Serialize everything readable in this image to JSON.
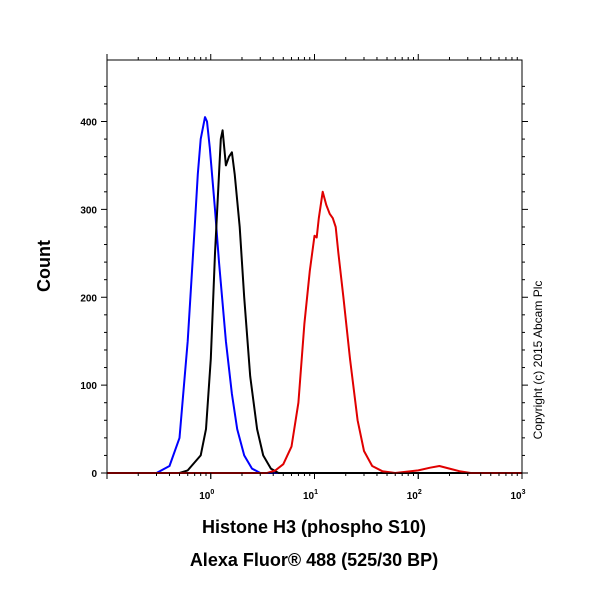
{
  "chart_data": {
    "type": "line",
    "ylabel": "Count",
    "xlabel_line1": "Histone H3 (phospho S10)",
    "xlabel_line2": "Alexa Fluor® 488 (525/30 BP)",
    "copyright": "Copyright (c) 2015 Abcam Plc",
    "x_scale": "log",
    "xlim": [
      0.1,
      1000
    ],
    "ylim": [
      0,
      470
    ],
    "y_ticks": [
      0,
      100,
      200,
      300,
      400
    ],
    "x_ticks": [
      {
        "value": 1,
        "base": "10",
        "exp": "0"
      },
      {
        "value": 10,
        "base": "10",
        "exp": "1"
      },
      {
        "value": 100,
        "base": "10",
        "exp": "2"
      },
      {
        "value": 1000,
        "base": "10",
        "exp": "3"
      }
    ],
    "series": [
      {
        "color": "#0000ff",
        "points": [
          [
            0.1,
            0
          ],
          [
            0.3,
            0
          ],
          [
            0.4,
            8
          ],
          [
            0.5,
            40
          ],
          [
            0.6,
            150
          ],
          [
            0.7,
            280
          ],
          [
            0.75,
            340
          ],
          [
            0.8,
            380
          ],
          [
            0.88,
            405
          ],
          [
            0.92,
            400
          ],
          [
            0.98,
            370
          ],
          [
            1.1,
            300
          ],
          [
            1.2,
            240
          ],
          [
            1.4,
            150
          ],
          [
            1.6,
            90
          ],
          [
            1.8,
            50
          ],
          [
            2.1,
            20
          ],
          [
            2.5,
            5
          ],
          [
            3,
            0
          ],
          [
            1000,
            0
          ]
        ]
      },
      {
        "color": "#000000",
        "points": [
          [
            0.1,
            0
          ],
          [
            0.5,
            0
          ],
          [
            0.6,
            3
          ],
          [
            0.8,
            20
          ],
          [
            0.9,
            50
          ],
          [
            1.0,
            130
          ],
          [
            1.1,
            250
          ],
          [
            1.2,
            340
          ],
          [
            1.25,
            380
          ],
          [
            1.3,
            390
          ],
          [
            1.4,
            350
          ],
          [
            1.5,
            360
          ],
          [
            1.6,
            365
          ],
          [
            1.7,
            340
          ],
          [
            1.9,
            280
          ],
          [
            2.1,
            200
          ],
          [
            2.4,
            110
          ],
          [
            2.8,
            50
          ],
          [
            3.2,
            20
          ],
          [
            3.8,
            5
          ],
          [
            4.5,
            0
          ],
          [
            1000,
            0
          ]
        ]
      },
      {
        "color": "#e00000",
        "points": [
          [
            0.1,
            0
          ],
          [
            3.5,
            0
          ],
          [
            4.2,
            3
          ],
          [
            5,
            10
          ],
          [
            6,
            30
          ],
          [
            7,
            80
          ],
          [
            8,
            170
          ],
          [
            9,
            230
          ],
          [
            10,
            270
          ],
          [
            10.5,
            268
          ],
          [
            11,
            290
          ],
          [
            12,
            320
          ],
          [
            13,
            305
          ],
          [
            14,
            295
          ],
          [
            15,
            290
          ],
          [
            16,
            280
          ],
          [
            17,
            250
          ],
          [
            19,
            200
          ],
          [
            22,
            130
          ],
          [
            26,
            60
          ],
          [
            30,
            25
          ],
          [
            36,
            8
          ],
          [
            45,
            2
          ],
          [
            60,
            0
          ],
          [
            100,
            3
          ],
          [
            130,
            6
          ],
          [
            160,
            8
          ],
          [
            200,
            5
          ],
          [
            250,
            2
          ],
          [
            320,
            0
          ],
          [
            1000,
            0
          ]
        ]
      }
    ]
  }
}
